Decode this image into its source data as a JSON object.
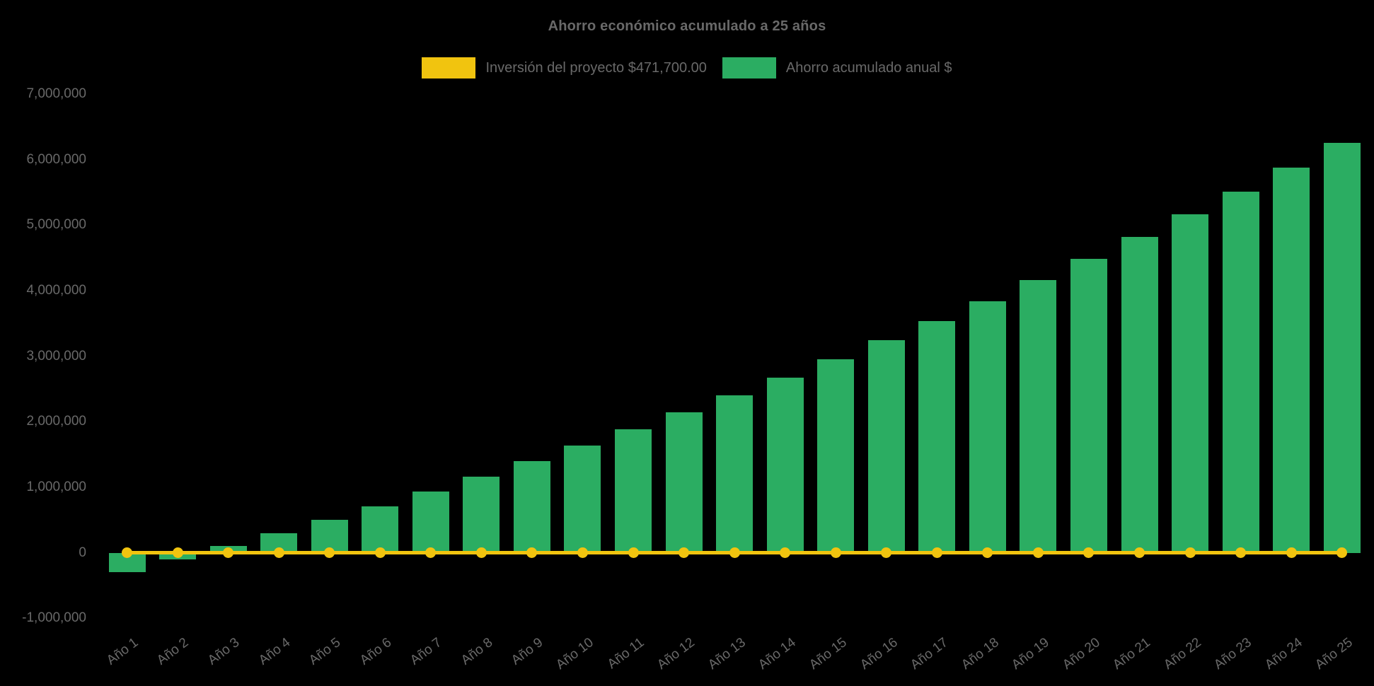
{
  "chart": {
    "title": "Ahorro económico acumulado a 25 años",
    "legend": [
      {
        "label": "Inversión del proyecto $471,700.00",
        "color": "#f1c40f",
        "swatch": "yellow"
      },
      {
        "label": "Ahorro acumulado anual $",
        "color": "#2bad62",
        "swatch": "green"
      }
    ]
  },
  "chart_data": {
    "type": "bar",
    "title": "Ahorro económico acumulado a 25 años",
    "categories": [
      "Año 1",
      "Año 2",
      "Año 3",
      "Año 4",
      "Año 5",
      "Año 6",
      "Año 7",
      "Año 8",
      "Año 9",
      "Año 10",
      "Año 11",
      "Año 12",
      "Año 13",
      "Año 14",
      "Año 15",
      "Año 16",
      "Año 17",
      "Año 18",
      "Año 19",
      "Año 20",
      "Año 21",
      "Año 22",
      "Año 23",
      "Año 24",
      "Año 25"
    ],
    "series": [
      {
        "name": "Inversión del proyecto $471,700.00",
        "type": "line",
        "color": "#f1c40f",
        "point_style": "circle",
        "values": [
          0,
          0,
          0,
          0,
          0,
          0,
          0,
          0,
          0,
          0,
          0,
          0,
          0,
          0,
          0,
          0,
          0,
          0,
          0,
          0,
          0,
          0,
          0,
          0,
          0
        ]
      },
      {
        "name": "Ahorro acumulado anual $",
        "type": "bar",
        "color": "#2bad62",
        "values": [
          -300000,
          -100000,
          100000,
          300000,
          500000,
          710000,
          930000,
          1160000,
          1400000,
          1640000,
          1880000,
          2140000,
          2400000,
          2670000,
          2950000,
          3240000,
          3530000,
          3840000,
          4160000,
          4480000,
          4820000,
          5160000,
          5510000,
          5880000,
          6250000
        ]
      }
    ],
    "xlabel": "",
    "ylabel": "",
    "ylim": [
      -1000000,
      7000000
    ],
    "y_tick_values": [
      7000000,
      6000000,
      5000000,
      4000000,
      3000000,
      2000000,
      1000000,
      0,
      -1000000
    ],
    "y_tick_labels": [
      "7,000,000",
      "6,000,000",
      "5,000,000",
      "4,000,000",
      "3,000,000",
      "2,000,000",
      "1,000,000",
      "0",
      "-1,000,000"
    ],
    "grid": false,
    "legend_position": "top",
    "background_color": "#000000",
    "text_color": "#696969"
  }
}
